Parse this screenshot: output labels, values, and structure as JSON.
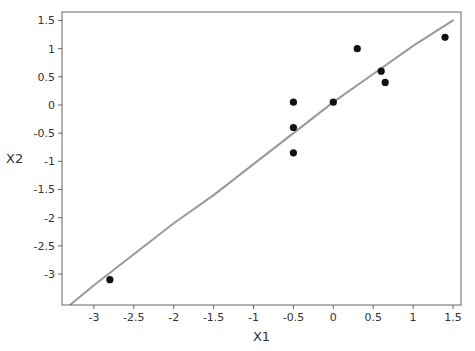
{
  "chart_data": {
    "type": "scatter",
    "xlabel": "X1",
    "ylabel": "X2",
    "xlim": [
      -3.4,
      1.6
    ],
    "ylim": [
      -3.55,
      1.65
    ],
    "xticks": [
      -3,
      -2.5,
      -2,
      -1.5,
      -1,
      -0.5,
      0,
      0.5,
      1,
      1.5
    ],
    "yticks": [
      -3,
      -2.5,
      -2,
      -1.5,
      -1,
      -0.5,
      0,
      0.5,
      1,
      1.5
    ],
    "grid": false,
    "series": [
      {
        "type": "line",
        "color": "#999999",
        "x": [
          -3.3,
          -3.0,
          -2.5,
          -2.0,
          -1.5,
          -1.0,
          -0.5,
          0.0,
          0.5,
          1.0,
          1.5
        ],
        "values": [
          -3.55,
          -3.2,
          -2.65,
          -2.1,
          -1.6,
          -1.05,
          -0.5,
          0.05,
          0.55,
          1.05,
          1.5
        ]
      },
      {
        "type": "scatter",
        "color": "#111111",
        "x": [
          -2.8,
          -0.5,
          -0.5,
          -0.5,
          0.0,
          0.3,
          0.6,
          0.65,
          1.4
        ],
        "values": [
          -3.1,
          0.05,
          -0.4,
          -0.85,
          0.05,
          1.0,
          0.6,
          0.4,
          1.2
        ]
      }
    ]
  }
}
